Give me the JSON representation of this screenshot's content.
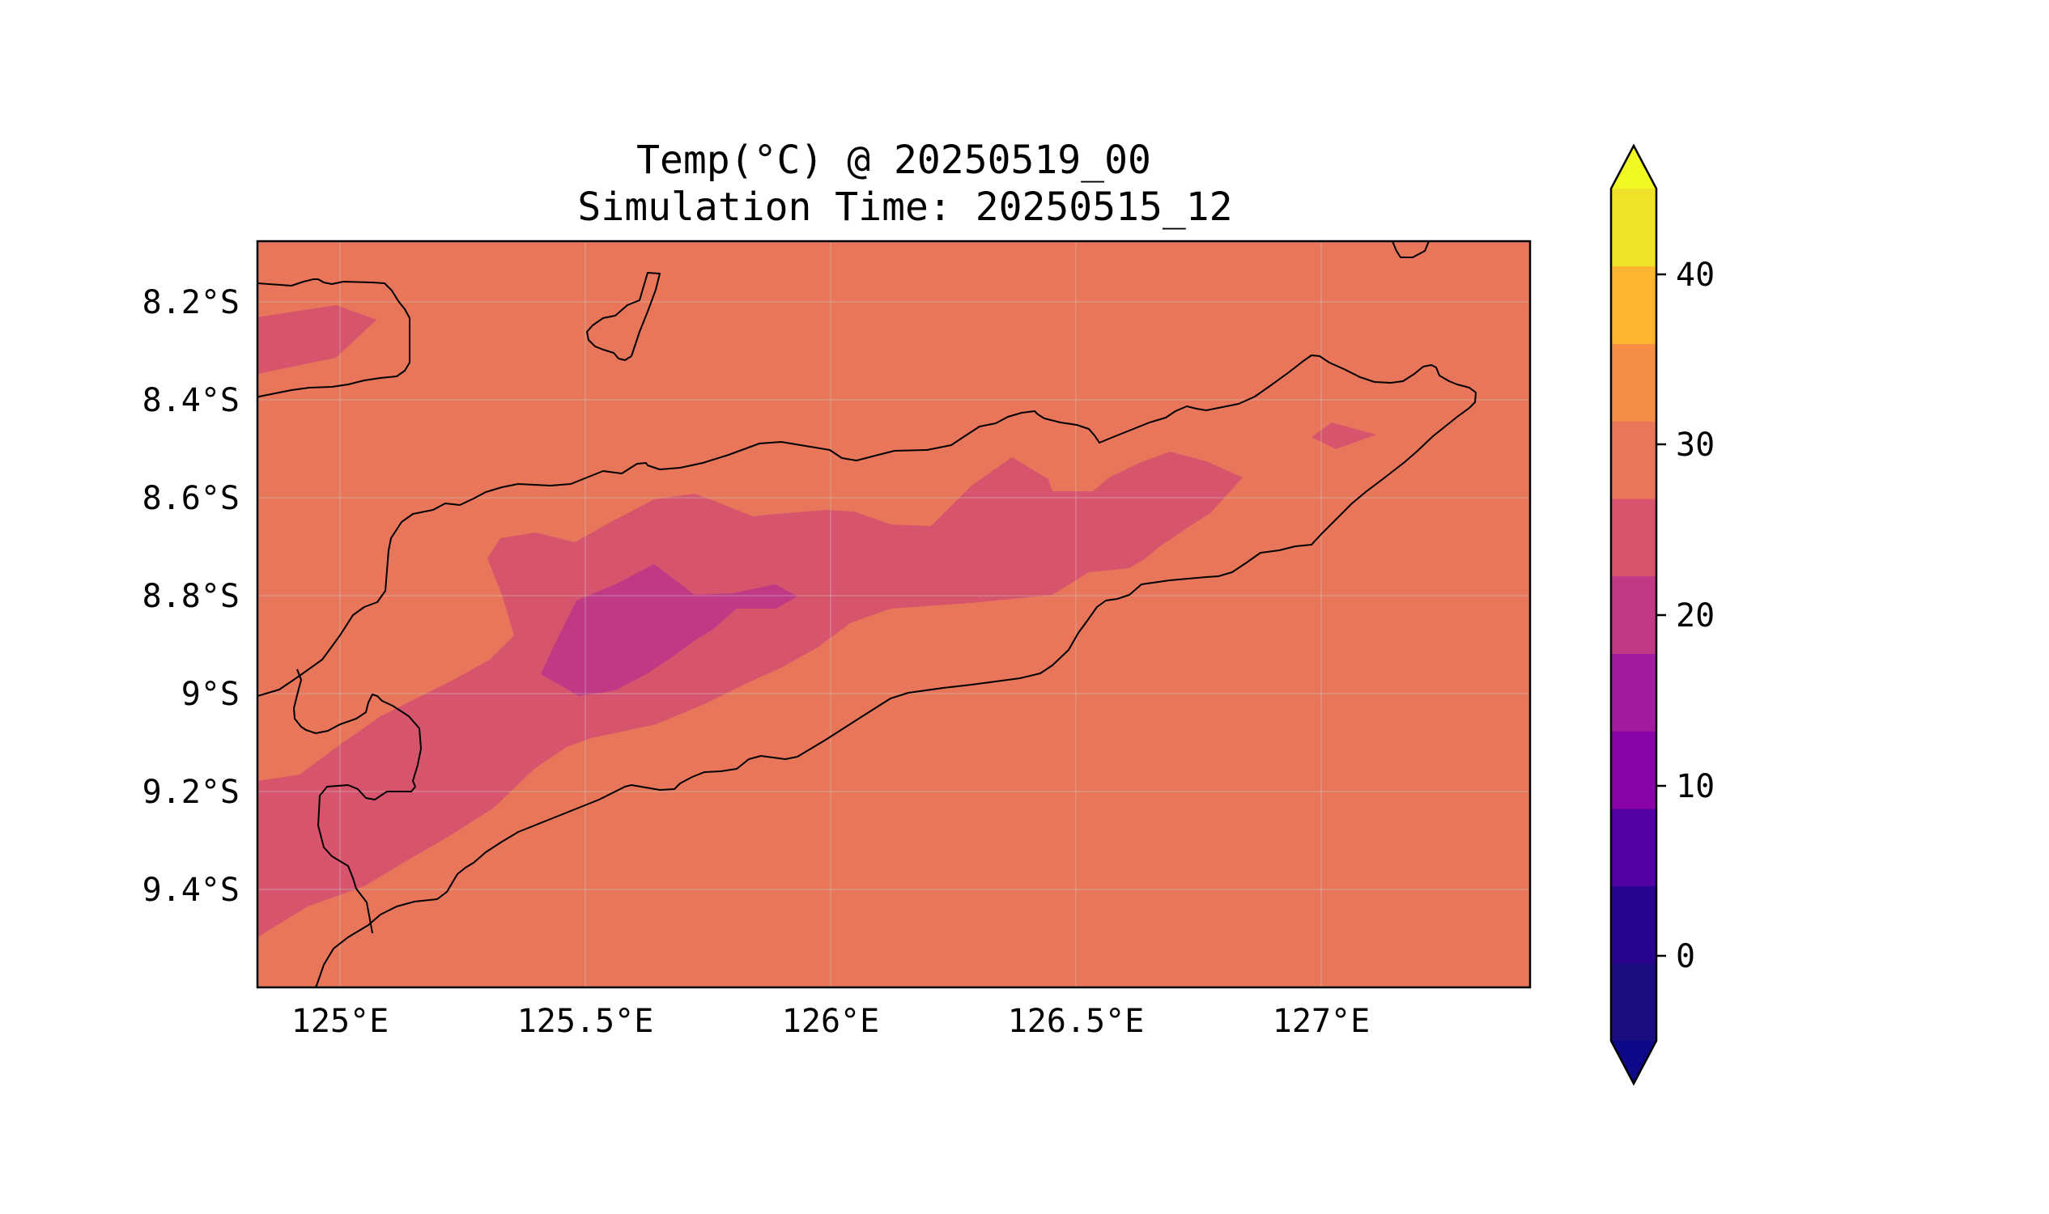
{
  "title": {
    "line1": "Temp(°C) @ 20250519_00",
    "line2": "Simulation Time: 20250515_12"
  },
  "map": {
    "longitude_ticks": [
      "125°E",
      "125.5°E",
      "126°E",
      "126.5°E",
      "127°E"
    ],
    "latitude_ticks": [
      "8.2°S",
      "8.4°S",
      "8.6°S",
      "8.8°S",
      "9°S",
      "9.2°S",
      "9.4°S"
    ],
    "lon_range": [
      124.83,
      127.42
    ],
    "lat_range": [
      -9.6,
      -8.08
    ],
    "gridlines": true,
    "coastlines": true,
    "background_field_range": "25–30"
  },
  "colorbar": {
    "ticks": [
      "0",
      "10",
      "20",
      "30",
      "40"
    ],
    "levels": [
      -5,
      0,
      5,
      10,
      15,
      20,
      25,
      30,
      35,
      40,
      45
    ],
    "colors": [
      "#1b0c81",
      "#28048f",
      "#5301a4",
      "#8a03a8",
      "#a41c9e",
      "#bf3984",
      "#d6556d",
      "#e8765a",
      "#f68d44",
      "#fdb42f",
      "#f0e129"
    ],
    "extend_low_color": "#0d0887",
    "extend_high_color": "#f0f921",
    "colormap": "plasma"
  }
}
